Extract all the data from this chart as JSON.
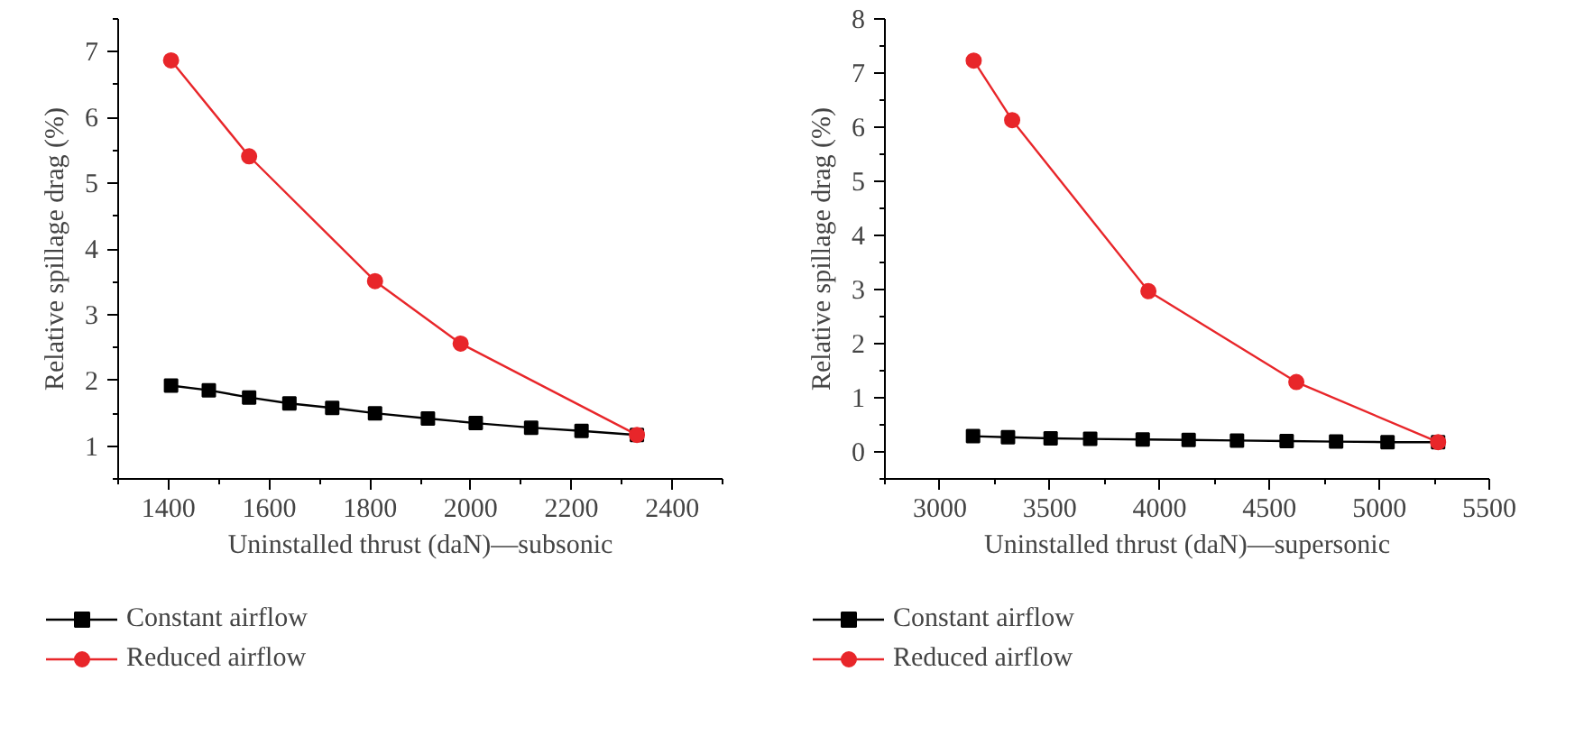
{
  "chart_data": [
    {
      "type": "line",
      "xlabel": "Uninstalled thrust (daN)—subsonic",
      "ylabel": "Relative spillage drag (%)",
      "xlim": [
        1300,
        2500
      ],
      "ylim": [
        0.5,
        7.5
      ],
      "xticks": [
        {
          "value": 1300,
          "label": null
        },
        1400,
        {
          "value": 1500,
          "label": null
        },
        1600,
        {
          "value": 1700,
          "label": null
        },
        1800,
        {
          "value": 1900,
          "label": null
        },
        2000,
        {
          "value": 2100,
          "label": null
        },
        2200,
        {
          "value": 2300,
          "label": null
        },
        2400,
        {
          "value": 2500,
          "label": null
        }
      ],
      "yticks": [
        {
          "value": 0.5,
          "label": null
        },
        1,
        {
          "value": 1.5,
          "label": null
        },
        2,
        {
          "value": 2.5,
          "label": null
        },
        3,
        {
          "value": 3.5,
          "label": null
        },
        4,
        {
          "value": 4.5,
          "label": null
        },
        5,
        {
          "value": 5.5,
          "label": null
        },
        6,
        {
          "value": 6.5,
          "label": null
        },
        7,
        {
          "value": 7.5,
          "label": null
        }
      ],
      "grid": false,
      "legend": "bottom",
      "series": [
        {
          "name": "Constant airflow",
          "color": "#000000",
          "marker": "square",
          "x": [
            1405,
            1480,
            1560,
            1640,
            1725,
            1810,
            1915,
            2010,
            2120,
            2220,
            2330
          ],
          "values": [
            1.92,
            1.85,
            1.74,
            1.65,
            1.58,
            1.5,
            1.42,
            1.35,
            1.28,
            1.23,
            1.17
          ]
        },
        {
          "name": "Reduced airflow",
          "color": "#e8262a",
          "marker": "circle",
          "x": [
            1405,
            1560,
            1810,
            1980,
            2330
          ],
          "values": [
            6.87,
            5.41,
            3.51,
            2.56,
            1.17
          ]
        }
      ]
    },
    {
      "type": "line",
      "xlabel": "Uninstalled thrust (daN)—supersonic",
      "ylabel": "Relative spillage drag (%)",
      "xlim": [
        2750,
        5500
      ],
      "ylim": [
        -0.5,
        8
      ],
      "xticks": [
        {
          "value": 2750,
          "label": null
        },
        3000,
        {
          "value": 3250,
          "label": null
        },
        3500,
        {
          "value": 3750,
          "label": null
        },
        4000,
        {
          "value": 4250,
          "label": null
        },
        4500,
        {
          "value": 4750,
          "label": null
        },
        5000,
        {
          "value": 5250,
          "label": null
        },
        5500
      ],
      "yticks": [
        {
          "value": -0.5,
          "label": null
        },
        0,
        {
          "value": 0.5,
          "label": null
        },
        1,
        {
          "value": 1.5,
          "label": null
        },
        2,
        {
          "value": 2.5,
          "label": null
        },
        3,
        {
          "value": 3.5,
          "label": null
        },
        4,
        {
          "value": 4.5,
          "label": null
        },
        5,
        {
          "value": 5.5,
          "label": null
        },
        6,
        {
          "value": 6.5,
          "label": null
        },
        7,
        {
          "value": 7.5,
          "label": null
        },
        8
      ],
      "grid": false,
      "legend": "bottom",
      "series": [
        {
          "name": "Constant airflow",
          "color": "#000000",
          "marker": "square",
          "x": [
            3151,
            3310,
            3504,
            3684,
            3923,
            4132,
            4352,
            4578,
            4803,
            5037,
            5267
          ],
          "values": [
            0.29,
            0.27,
            0.25,
            0.24,
            0.23,
            0.22,
            0.21,
            0.2,
            0.19,
            0.18,
            0.18
          ]
        },
        {
          "name": "Reduced airflow",
          "color": "#e8262a",
          "marker": "circle",
          "x": [
            3154,
            3329,
            3949,
            4622,
            5267
          ],
          "values": [
            7.23,
            6.13,
            2.97,
            1.29,
            0.18
          ]
        }
      ]
    }
  ]
}
